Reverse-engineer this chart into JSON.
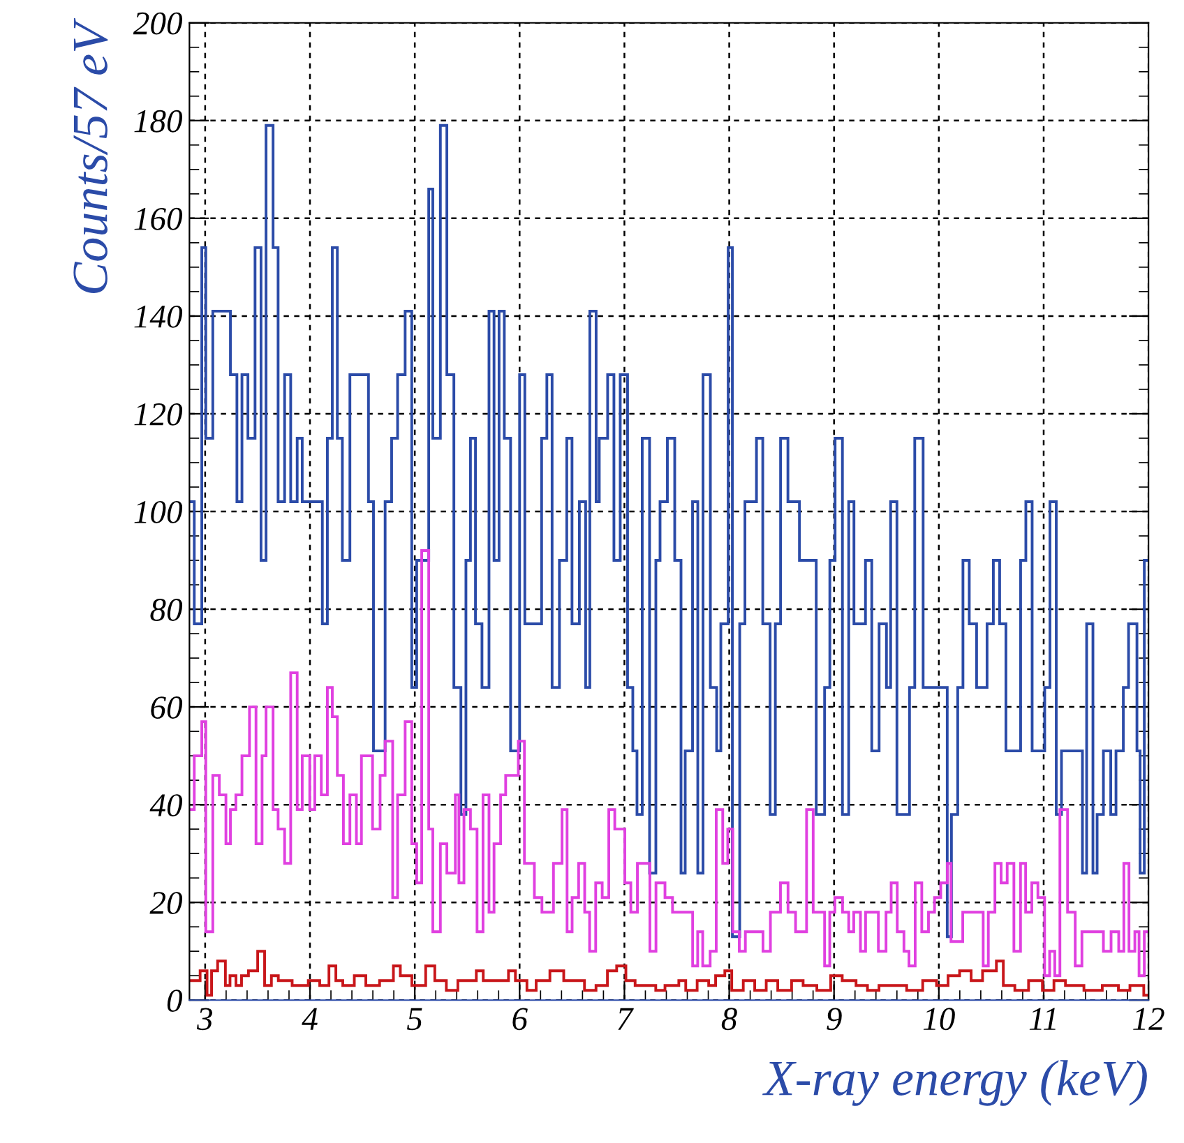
{
  "chart_data": {
    "type": "step",
    "xlabel": "X-ray energy (keV)",
    "ylabel": "Counts/57 eV",
    "xlim": [
      2.85,
      12
    ],
    "ylim": [
      0,
      200
    ],
    "xticks": [
      3,
      4,
      5,
      6,
      7,
      8,
      9,
      10,
      11,
      12
    ],
    "yticks": [
      0,
      20,
      40,
      60,
      80,
      100,
      120,
      140,
      160,
      180,
      200
    ],
    "grid": true,
    "series": [
      {
        "color": "#2b4ba8",
        "x": [
          2.85,
          2.896,
          2.968,
          3.006,
          3.073,
          3.241,
          3.303,
          3.351,
          3.408,
          3.476,
          3.533,
          3.581,
          3.648,
          3.696,
          3.758,
          3.816,
          3.878,
          3.926,
          4.118,
          4.166,
          4.213,
          4.261,
          4.309,
          4.381,
          4.558,
          4.606,
          4.717,
          4.779,
          4.836,
          4.908,
          4.971,
          5.018,
          5.133,
          5.172,
          5.244,
          5.306,
          5.373,
          5.44,
          5.488,
          5.531,
          5.579,
          5.641,
          5.708,
          5.756,
          5.804,
          5.854,
          5.914,
          6.0,
          6.05,
          6.21,
          6.26,
          6.31,
          6.38,
          6.45,
          6.5,
          6.57,
          6.63,
          6.67,
          6.73,
          6.76,
          6.84,
          6.9,
          6.96,
          7.03,
          7.08,
          7.12,
          7.17,
          7.24,
          7.3,
          7.34,
          7.41,
          7.48,
          7.54,
          7.58,
          7.65,
          7.7,
          7.75,
          7.82,
          7.88,
          7.92,
          7.99,
          8.03,
          8.1,
          8.15,
          8.26,
          8.32,
          8.39,
          8.44,
          8.49,
          8.56,
          8.67,
          8.83,
          8.91,
          8.96,
          9.01,
          9.08,
          9.14,
          9.19,
          9.3,
          9.36,
          9.43,
          9.5,
          9.54,
          9.6,
          9.72,
          9.77,
          9.85,
          10.08,
          10.12,
          10.18,
          10.23,
          10.29,
          10.36,
          10.46,
          10.52,
          10.58,
          10.64,
          10.78,
          10.83,
          10.89,
          11.01,
          11.06,
          11.12,
          11.17,
          11.37,
          11.41,
          11.47,
          11.51,
          11.57,
          11.64,
          11.69,
          11.76,
          11.81,
          11.89,
          11.92,
          11.96
        ],
        "values": [
          102,
          77,
          154,
          115,
          141,
          128,
          102,
          128,
          115,
          154,
          90,
          179,
          154,
          102,
          128,
          102,
          115,
          102,
          77,
          115,
          154,
          115,
          90,
          128,
          102,
          51,
          102,
          115,
          128,
          141,
          64,
          90,
          166,
          115,
          179,
          128,
          64,
          38,
          90,
          115,
          77,
          64,
          141,
          90,
          141,
          115,
          51,
          128,
          77,
          115,
          128,
          64,
          90,
          115,
          77,
          102,
          64,
          141,
          102,
          115,
          128,
          90,
          128,
          64,
          51,
          38,
          115,
          26,
          90,
          102,
          115,
          90,
          26,
          51,
          102,
          26,
          128,
          64,
          51,
          77,
          154,
          13,
          77,
          102,
          115,
          77,
          38,
          77,
          115,
          102,
          90,
          38,
          64,
          90,
          115,
          38,
          102,
          77,
          90,
          51,
          77,
          64,
          102,
          38,
          64,
          115,
          64,
          13,
          38,
          64,
          90,
          77,
          64,
          77,
          90,
          77,
          51,
          90,
          102,
          51,
          64,
          102,
          38,
          51,
          26,
          77,
          26,
          38,
          51,
          38,
          51,
          64,
          77,
          51,
          26,
          90
        ]
      },
      {
        "color": "#e040e0",
        "x": [
          2.85,
          2.896,
          2.968,
          3.006,
          3.073,
          3.135,
          3.198,
          3.241,
          3.293,
          3.351,
          3.423,
          3.485,
          3.543,
          3.581,
          3.648,
          3.696,
          3.758,
          3.816,
          3.878,
          3.926,
          3.998,
          4.046,
          4.108,
          4.166,
          4.213,
          4.261,
          4.319,
          4.381,
          4.443,
          4.491,
          4.597,
          4.669,
          4.717,
          4.789,
          4.836,
          4.908,
          4.971,
          5.018,
          5.066,
          5.133,
          5.172,
          5.244,
          5.306,
          5.387,
          5.421,
          5.469,
          5.531,
          5.594,
          5.651,
          5.708,
          5.756,
          5.819,
          5.867,
          5.988,
          6.046,
          6.141,
          6.213,
          6.323,
          6.405,
          6.453,
          6.501,
          6.563,
          6.621,
          6.668,
          6.726,
          6.788,
          6.851,
          6.908,
          7.004,
          7.061,
          7.124,
          7.243,
          7.301,
          7.387,
          7.459,
          7.651,
          7.699,
          7.747,
          7.818,
          7.876,
          7.938,
          7.986,
          8.034,
          8.096,
          8.154,
          8.322,
          8.393,
          8.489,
          8.561,
          8.633,
          8.738,
          8.801,
          8.91,
          8.959,
          9.008,
          9.081,
          9.14,
          9.188,
          9.252,
          9.301,
          9.423,
          9.496,
          9.545,
          9.603,
          9.667,
          9.715,
          9.774,
          9.837,
          9.901,
          9.959,
          10.018,
          10.081,
          10.116,
          10.228,
          10.423,
          10.472,
          10.535,
          10.594,
          10.652,
          10.716,
          10.779,
          10.828,
          10.887,
          10.945,
          11.009,
          11.057,
          11.106,
          11.155,
          11.228,
          11.301,
          11.365,
          11.57,
          11.643,
          11.716,
          11.765,
          11.814,
          11.87,
          11.91,
          11.96
        ],
        "values": [
          39,
          50,
          57,
          14,
          46,
          42,
          32,
          39,
          42,
          50,
          60,
          32,
          50,
          60,
          39,
          35,
          28,
          67,
          39,
          50,
          39,
          50,
          42,
          64,
          58,
          46,
          32,
          42,
          32,
          50,
          35,
          46,
          53,
          21,
          42,
          57,
          32,
          24,
          92,
          35,
          14,
          32,
          26,
          42,
          24,
          39,
          35,
          14,
          42,
          18,
          32,
          42,
          46,
          53,
          28,
          21,
          18,
          28,
          39,
          14,
          21,
          28,
          18,
          10,
          24,
          21,
          39,
          35,
          24,
          18,
          28,
          10,
          24,
          21,
          18,
          7,
          14,
          7,
          10,
          39,
          28,
          35,
          14,
          10,
          14,
          10,
          18,
          24,
          18,
          14,
          39,
          18,
          7,
          18,
          21,
          18,
          14,
          18,
          10,
          18,
          10,
          18,
          24,
          14,
          10,
          7,
          24,
          14,
          18,
          21,
          24,
          28,
          12,
          18,
          7,
          18,
          28,
          24,
          28,
          10,
          28,
          18,
          24,
          21,
          5,
          10,
          5,
          39,
          18,
          7,
          14,
          10,
          14,
          10,
          28,
          10,
          14,
          5,
          14
        ]
      },
      {
        "color": "#c8161a",
        "x": [
          2.85,
          2.952,
          3.018,
          3.061,
          3.119,
          3.193,
          3.237,
          3.294,
          3.347,
          3.413,
          3.501,
          3.567,
          3.632,
          3.698,
          3.83,
          3.984,
          4.093,
          4.181,
          4.247,
          4.313,
          4.423,
          4.533,
          4.664,
          4.796,
          4.862,
          4.972,
          5.104,
          5.191,
          5.301,
          5.411,
          5.587,
          5.653,
          5.894,
          5.96,
          6.07,
          6.158,
          6.289,
          6.421,
          6.619,
          6.729,
          6.838,
          6.926,
          7.014,
          7.102,
          7.299,
          7.387,
          7.519,
          7.585,
          7.694,
          7.804,
          7.87,
          7.958,
          8.024,
          8.134,
          8.243,
          8.353,
          8.463,
          8.595,
          8.705,
          8.836,
          8.968,
          9.078,
          9.21,
          9.319,
          9.429,
          9.693,
          9.846,
          9.978,
          10.088,
          10.198,
          10.308,
          10.417,
          10.549,
          10.615,
          10.725,
          10.856,
          10.988,
          11.098,
          11.208,
          11.384,
          11.559,
          11.713,
          11.823,
          11.955
        ],
        "values": [
          4,
          6,
          1,
          6,
          8,
          3,
          5,
          3,
          5,
          6,
          10,
          3,
          5,
          4,
          3,
          4,
          3,
          7,
          4,
          3,
          5,
          3,
          4,
          7,
          5,
          3,
          7,
          4,
          2,
          4,
          6,
          4,
          6,
          4,
          2,
          4,
          6,
          4,
          2,
          3,
          6,
          7,
          4,
          3,
          2,
          3,
          4,
          2,
          4,
          3,
          5,
          6,
          2,
          4,
          2,
          4,
          2,
          4,
          3,
          2,
          5,
          4,
          3,
          2,
          3,
          2,
          4,
          3,
          5,
          6,
          4,
          6,
          8,
          3,
          2,
          4,
          2,
          4,
          3,
          2,
          3,
          2,
          3,
          1
        ]
      }
    ]
  }
}
